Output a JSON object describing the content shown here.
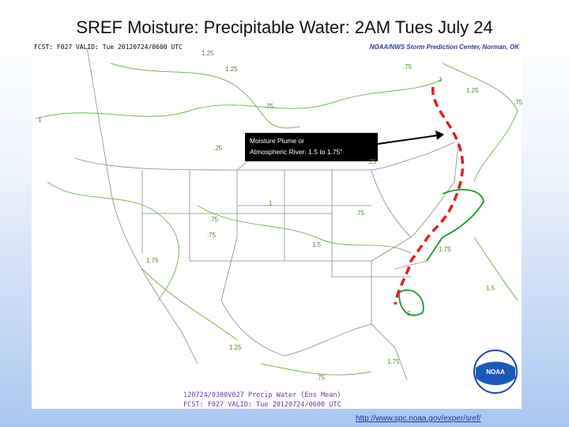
{
  "title": "SREF Moisture: Precipitable Water: 2AM Tues July 24",
  "annotation": [
    "Moisture Plume or",
    "Atmospheric River: 1.5 to 1.75”"
  ],
  "map": {
    "valid": "FCST: F027 VALID: Tue 20120724/0600 UTC",
    "source": "NOAA/NWS Storm Prediction Center, Norman, OK",
    "footer": [
      "120724/0300V027 Precip Water (Ens Mean)",
      "FCST: F027 VALID: Tue 20120724/0600 UTC"
    ],
    "logo": "NOAA",
    "contour_labels": [
      "1.25",
      "1.25",
      ".75",
      "1",
      "1.25",
      ".75",
      ".75",
      "1",
      ".25",
      ".25",
      "1",
      ".75",
      ".75",
      ".75",
      "1.5",
      "1.75",
      "1.75",
      "1.5",
      "2",
      "1.75",
      ".75",
      "1.25"
    ]
  },
  "url": "http://www.spc.noaa.gov/exper/sref/"
}
